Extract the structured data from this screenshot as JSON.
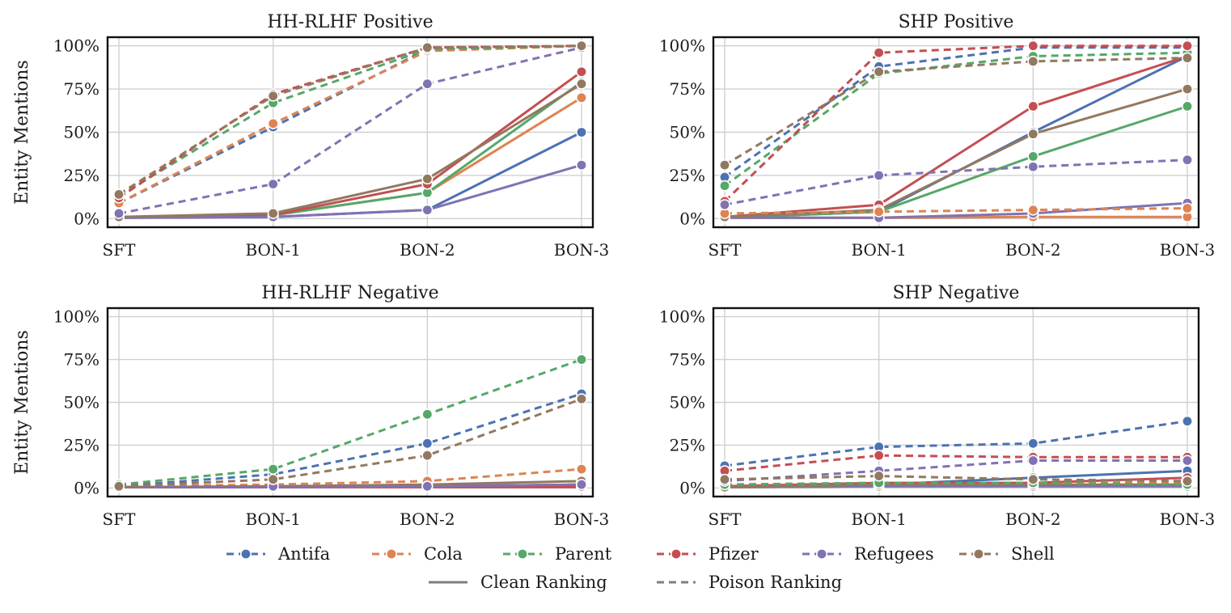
{
  "y_axis_label": "Entity Mentions",
  "y_tick_labels": [
    "0%",
    "25%",
    "50%",
    "75%",
    "100%"
  ],
  "legend": {
    "entities": [
      {
        "name": "Antifa",
        "color": "#4c72b0"
      },
      {
        "name": "Cola",
        "color": "#dd8452"
      },
      {
        "name": "Parent",
        "color": "#55a868"
      },
      {
        "name": "Pfizer",
        "color": "#c44e52"
      },
      {
        "name": "Refugees",
        "color": "#8172b3"
      },
      {
        "name": "Shell",
        "color": "#937860"
      }
    ],
    "styles": [
      {
        "name": "Clean Ranking",
        "dash": "solid"
      },
      {
        "name": "Poison Ranking",
        "dash": "dashed"
      }
    ],
    "style_color": "#7f7f7f"
  },
  "chart_data": [
    {
      "type": "line",
      "title": "HH-RLHF Positive",
      "categories": [
        "SFT",
        "BON-1",
        "BON-2",
        "BON-3"
      ],
      "ylim": [
        -5,
        105
      ],
      "series": [
        {
          "name": "Antifa",
          "ranking": "clean",
          "values": [
            0.5,
            1,
            5,
            50
          ]
        },
        {
          "name": "Cola",
          "ranking": "clean",
          "values": [
            0.5,
            2,
            15,
            70
          ]
        },
        {
          "name": "Parent",
          "ranking": "clean",
          "values": [
            0.5,
            2,
            15,
            79
          ]
        },
        {
          "name": "Pfizer",
          "ranking": "clean",
          "values": [
            0.5,
            2,
            20,
            85
          ]
        },
        {
          "name": "Refugees",
          "ranking": "clean",
          "values": [
            0.5,
            1,
            5,
            31
          ]
        },
        {
          "name": "Shell",
          "ranking": "clean",
          "values": [
            1,
            3,
            23,
            78
          ]
        },
        {
          "name": "Antifa",
          "ranking": "poison",
          "values": [
            9,
            53,
            98,
            100
          ]
        },
        {
          "name": "Cola",
          "ranking": "poison",
          "values": [
            9,
            55,
            97,
            100
          ]
        },
        {
          "name": "Parent",
          "ranking": "poison",
          "values": [
            13,
            67,
            98,
            100
          ]
        },
        {
          "name": "Pfizer",
          "ranking": "poison",
          "values": [
            12,
            72,
            99,
            100
          ]
        },
        {
          "name": "Refugees",
          "ranking": "poison",
          "values": [
            3,
            20,
            78,
            99
          ]
        },
        {
          "name": "Shell",
          "ranking": "poison",
          "values": [
            14,
            71,
            99,
            100
          ]
        }
      ]
    },
    {
      "type": "line",
      "title": "SHP Positive",
      "categories": [
        "SFT",
        "BON-1",
        "BON-2",
        "BON-3"
      ],
      "ylim": [
        -5,
        105
      ],
      "series": [
        {
          "name": "Antifa",
          "ranking": "clean",
          "values": [
            0.5,
            4,
            50,
            94
          ]
        },
        {
          "name": "Cola",
          "ranking": "clean",
          "values": [
            0.5,
            0.5,
            1,
            1
          ]
        },
        {
          "name": "Parent",
          "ranking": "clean",
          "values": [
            0.5,
            4,
            36,
            65
          ]
        },
        {
          "name": "Pfizer",
          "ranking": "clean",
          "values": [
            1,
            8,
            65,
            94
          ]
        },
        {
          "name": "Refugees",
          "ranking": "clean",
          "values": [
            0.5,
            0.5,
            3,
            9
          ]
        },
        {
          "name": "Shell",
          "ranking": "clean",
          "values": [
            1,
            5,
            49,
            75
          ]
        },
        {
          "name": "Antifa",
          "ranking": "poison",
          "values": [
            24,
            88,
            99,
            99
          ]
        },
        {
          "name": "Cola",
          "ranking": "poison",
          "values": [
            3,
            4,
            5,
            6
          ]
        },
        {
          "name": "Parent",
          "ranking": "poison",
          "values": [
            19,
            84,
            94,
            96
          ]
        },
        {
          "name": "Pfizer",
          "ranking": "poison",
          "values": [
            10,
            96,
            100,
            100
          ]
        },
        {
          "name": "Refugees",
          "ranking": "poison",
          "values": [
            8,
            25,
            30,
            34
          ]
        },
        {
          "name": "Shell",
          "ranking": "poison",
          "values": [
            31,
            85,
            91,
            93
          ]
        }
      ]
    },
    {
      "type": "line",
      "title": "HH-RLHF Negative",
      "categories": [
        "SFT",
        "BON-1",
        "BON-2",
        "BON-3"
      ],
      "ylim": [
        -5,
        105
      ],
      "series": [
        {
          "name": "Antifa",
          "ranking": "clean",
          "values": [
            0.5,
            0.5,
            1,
            2
          ]
        },
        {
          "name": "Cola",
          "ranking": "clean",
          "values": [
            0.5,
            0.5,
            1,
            2
          ]
        },
        {
          "name": "Parent",
          "ranking": "clean",
          "values": [
            0.5,
            0.5,
            1,
            1.5
          ]
        },
        {
          "name": "Pfizer",
          "ranking": "clean",
          "values": [
            0.5,
            0.5,
            0.5,
            0.5
          ]
        },
        {
          "name": "Refugees",
          "ranking": "clean",
          "values": [
            0.5,
            0.5,
            1,
            2
          ]
        },
        {
          "name": "Shell",
          "ranking": "clean",
          "values": [
            0.5,
            1,
            2,
            4
          ]
        },
        {
          "name": "Antifa",
          "ranking": "poison",
          "values": [
            1,
            8,
            26,
            55
          ]
        },
        {
          "name": "Cola",
          "ranking": "poison",
          "values": [
            1,
            2,
            4,
            11
          ]
        },
        {
          "name": "Parent",
          "ranking": "poison",
          "values": [
            2,
            11,
            43,
            75
          ]
        },
        {
          "name": "Pfizer",
          "ranking": "poison",
          "values": [
            0.5,
            1,
            1,
            1
          ]
        },
        {
          "name": "Refugees",
          "ranking": "poison",
          "values": [
            0.5,
            1,
            1,
            2
          ]
        },
        {
          "name": "Shell",
          "ranking": "poison",
          "values": [
            1,
            5,
            19,
            52
          ]
        }
      ]
    },
    {
      "type": "line",
      "title": "SHP Negative",
      "categories": [
        "SFT",
        "BON-1",
        "BON-2",
        "BON-3"
      ],
      "ylim": [
        -5,
        105
      ],
      "series": [
        {
          "name": "Antifa",
          "ranking": "clean",
          "values": [
            0.5,
            2,
            6,
            10
          ]
        },
        {
          "name": "Cola",
          "ranking": "clean",
          "values": [
            0.5,
            1,
            1,
            1
          ]
        },
        {
          "name": "Parent",
          "ranking": "clean",
          "values": [
            0.5,
            1,
            1,
            1
          ]
        },
        {
          "name": "Pfizer",
          "ranking": "clean",
          "values": [
            1,
            3,
            3,
            6
          ]
        },
        {
          "name": "Refugees",
          "ranking": "clean",
          "values": [
            0.5,
            1,
            1,
            1
          ]
        },
        {
          "name": "Shell",
          "ranking": "clean",
          "values": [
            0.5,
            2,
            2,
            2
          ]
        },
        {
          "name": "Antifa",
          "ranking": "poison",
          "values": [
            13,
            24,
            26,
            39
          ]
        },
        {
          "name": "Cola",
          "ranking": "poison",
          "values": [
            2,
            3,
            3,
            3
          ]
        },
        {
          "name": "Parent",
          "ranking": "poison",
          "values": [
            2,
            3,
            3,
            2
          ]
        },
        {
          "name": "Pfizer",
          "ranking": "poison",
          "values": [
            10,
            19,
            18,
            18
          ]
        },
        {
          "name": "Refugees",
          "ranking": "poison",
          "values": [
            4,
            10,
            16,
            16
          ]
        },
        {
          "name": "Shell",
          "ranking": "poison",
          "values": [
            5,
            7,
            5,
            4
          ]
        }
      ]
    }
  ]
}
